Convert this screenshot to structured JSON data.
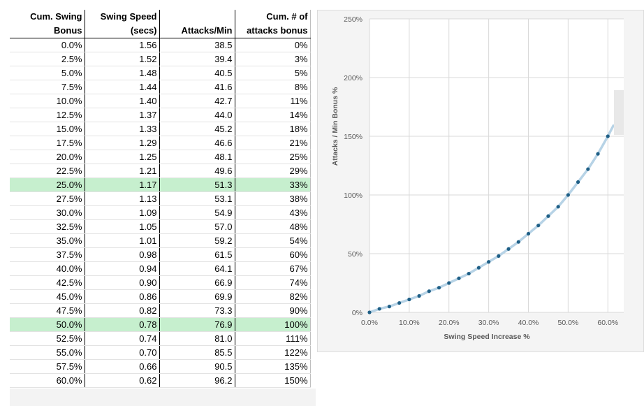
{
  "table": {
    "headers": [
      {
        "line1": "Cum. Swing",
        "line2": "Bonus"
      },
      {
        "line1": "Swing Speed",
        "line2": "(secs)"
      },
      {
        "line1": "",
        "line2": "Attacks/Min"
      },
      {
        "line1": "Cum. # of",
        "line2": "attacks bonus"
      }
    ],
    "rows": [
      [
        "0.0%",
        "1.56",
        "38.5",
        "0%"
      ],
      [
        "2.5%",
        "1.52",
        "39.4",
        "3%"
      ],
      [
        "5.0%",
        "1.48",
        "40.5",
        "5%"
      ],
      [
        "7.5%",
        "1.44",
        "41.6",
        "8%"
      ],
      [
        "10.0%",
        "1.40",
        "42.7",
        "11%"
      ],
      [
        "12.5%",
        "1.37",
        "44.0",
        "14%"
      ],
      [
        "15.0%",
        "1.33",
        "45.2",
        "18%"
      ],
      [
        "17.5%",
        "1.29",
        "46.6",
        "21%"
      ],
      [
        "20.0%",
        "1.25",
        "48.1",
        "25%"
      ],
      [
        "22.5%",
        "1.21",
        "49.6",
        "29%"
      ],
      [
        "25.0%",
        "1.17",
        "51.3",
        "33%"
      ],
      [
        "27.5%",
        "1.13",
        "53.1",
        "38%"
      ],
      [
        "30.0%",
        "1.09",
        "54.9",
        "43%"
      ],
      [
        "32.5%",
        "1.05",
        "57.0",
        "48%"
      ],
      [
        "35.0%",
        "1.01",
        "59.2",
        "54%"
      ],
      [
        "37.5%",
        "0.98",
        "61.5",
        "60%"
      ],
      [
        "40.0%",
        "0.94",
        "64.1",
        "67%"
      ],
      [
        "42.5%",
        "0.90",
        "66.9",
        "74%"
      ],
      [
        "45.0%",
        "0.86",
        "69.9",
        "82%"
      ],
      [
        "47.5%",
        "0.82",
        "73.3",
        "90%"
      ],
      [
        "50.0%",
        "0.78",
        "76.9",
        "100%"
      ],
      [
        "52.5%",
        "0.74",
        "81.0",
        "111%"
      ],
      [
        "55.0%",
        "0.70",
        "85.5",
        "122%"
      ],
      [
        "57.5%",
        "0.66",
        "90.5",
        "135%"
      ],
      [
        "60.0%",
        "0.62",
        "96.2",
        "150%"
      ]
    ],
    "highlighted_rows": [
      10,
      20
    ],
    "highlight_color": "#c6efce"
  },
  "chart_data": {
    "type": "scatter",
    "x": [
      0,
      2.5,
      5,
      7.5,
      10,
      12.5,
      15,
      17.5,
      20,
      22.5,
      25,
      27.5,
      30,
      32.5,
      35,
      37.5,
      40,
      42.5,
      45,
      47.5,
      50,
      52.5,
      55,
      57.5,
      60
    ],
    "y": [
      0,
      3,
      5,
      8,
      11,
      14,
      18,
      21,
      25,
      29,
      33,
      38,
      43,
      48,
      54,
      60,
      67,
      74,
      82,
      90,
      100,
      111,
      122,
      135,
      150
    ],
    "xlabel": "Swing Speed Increase %",
    "ylabel": "Attacks / Min Bonus %",
    "xlim": [
      0,
      65
    ],
    "ylim": [
      0,
      250
    ],
    "x_ticks": [
      0,
      10,
      20,
      30,
      40,
      50,
      60
    ],
    "x_tick_labels": [
      "0.0%",
      "10.0%",
      "20.0%",
      "30.0%",
      "40.0%",
      "50.0%",
      "60.0%"
    ],
    "y_ticks": [
      0,
      50,
      100,
      150,
      200,
      250
    ],
    "y_tick_labels": [
      "0%",
      "50%",
      "100%",
      "150%",
      "200%",
      "250%"
    ],
    "trendline": true,
    "grid": true,
    "point_color": "#1f5f86",
    "trendline_color": "#b7d3e6"
  }
}
